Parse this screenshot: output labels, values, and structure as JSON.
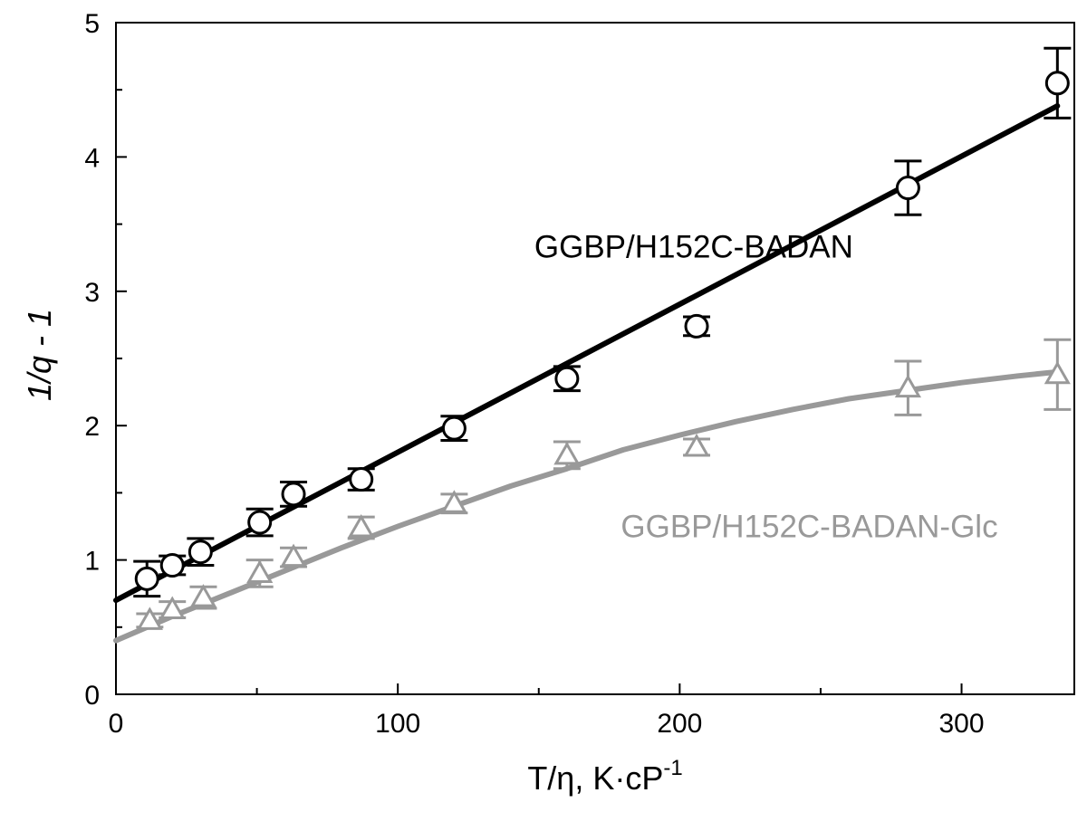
{
  "chart_data": {
    "type": "scatter",
    "xlabel": "T/η, K·cP",
    "xlabel_superscript": "-1",
    "ylabel": "1/q - 1",
    "xlim": [
      0,
      340
    ],
    "ylim": [
      0,
      5
    ],
    "xticks": [
      0,
      100,
      200,
      300
    ],
    "yticks": [
      0,
      1,
      2,
      3,
      4,
      5
    ],
    "grid": false,
    "series": [
      {
        "name": "GGBP/H152C-BADAN",
        "marker": "circle",
        "color": "#000000",
        "x": [
          11,
          20,
          30,
          51,
          63,
          87,
          120,
          160,
          206,
          281,
          334
        ],
        "y": [
          0.86,
          0.96,
          1.06,
          1.28,
          1.49,
          1.6,
          1.98,
          2.35,
          2.74,
          3.77,
          4.55
        ],
        "err": [
          0.13,
          0.07,
          0.1,
          0.1,
          0.09,
          0.08,
          0.09,
          0.09,
          0.07,
          0.2,
          0.26
        ],
        "fit": {
          "x": [
            0,
            334
          ],
          "y": [
            0.7,
            4.38
          ]
        }
      },
      {
        "name": "GGBP/H152C-BADAN-Glc",
        "marker": "triangle",
        "color": "#999999",
        "x": [
          12,
          20,
          31,
          51,
          63,
          87,
          120,
          160,
          206,
          281,
          334
        ],
        "y": [
          0.55,
          0.63,
          0.72,
          0.9,
          1.02,
          1.24,
          1.42,
          1.78,
          1.84,
          2.28,
          2.38
        ],
        "err": [
          0.05,
          0.06,
          0.08,
          0.1,
          0.07,
          0.08,
          0.07,
          0.1,
          0.06,
          0.2,
          0.26
        ],
        "fit": {
          "x": [
            0,
            20,
            40,
            60,
            80,
            100,
            120,
            140,
            160,
            180,
            200,
            220,
            240,
            260,
            280,
            300,
            320,
            334
          ],
          "y": [
            0.4,
            0.58,
            0.75,
            0.92,
            1.09,
            1.25,
            1.4,
            1.55,
            1.68,
            1.82,
            1.93,
            2.03,
            2.12,
            2.2,
            2.26,
            2.32,
            2.37,
            2.4
          ]
        }
      }
    ],
    "annotations": [
      {
        "text": "GGBP/H152C-BADAN",
        "x": 205,
        "y": 3.25,
        "color": "#000000"
      },
      {
        "text": "GGBP/H152C-BADAN-Glc",
        "x": 246,
        "y": 1.17,
        "color": "#999999"
      }
    ]
  }
}
